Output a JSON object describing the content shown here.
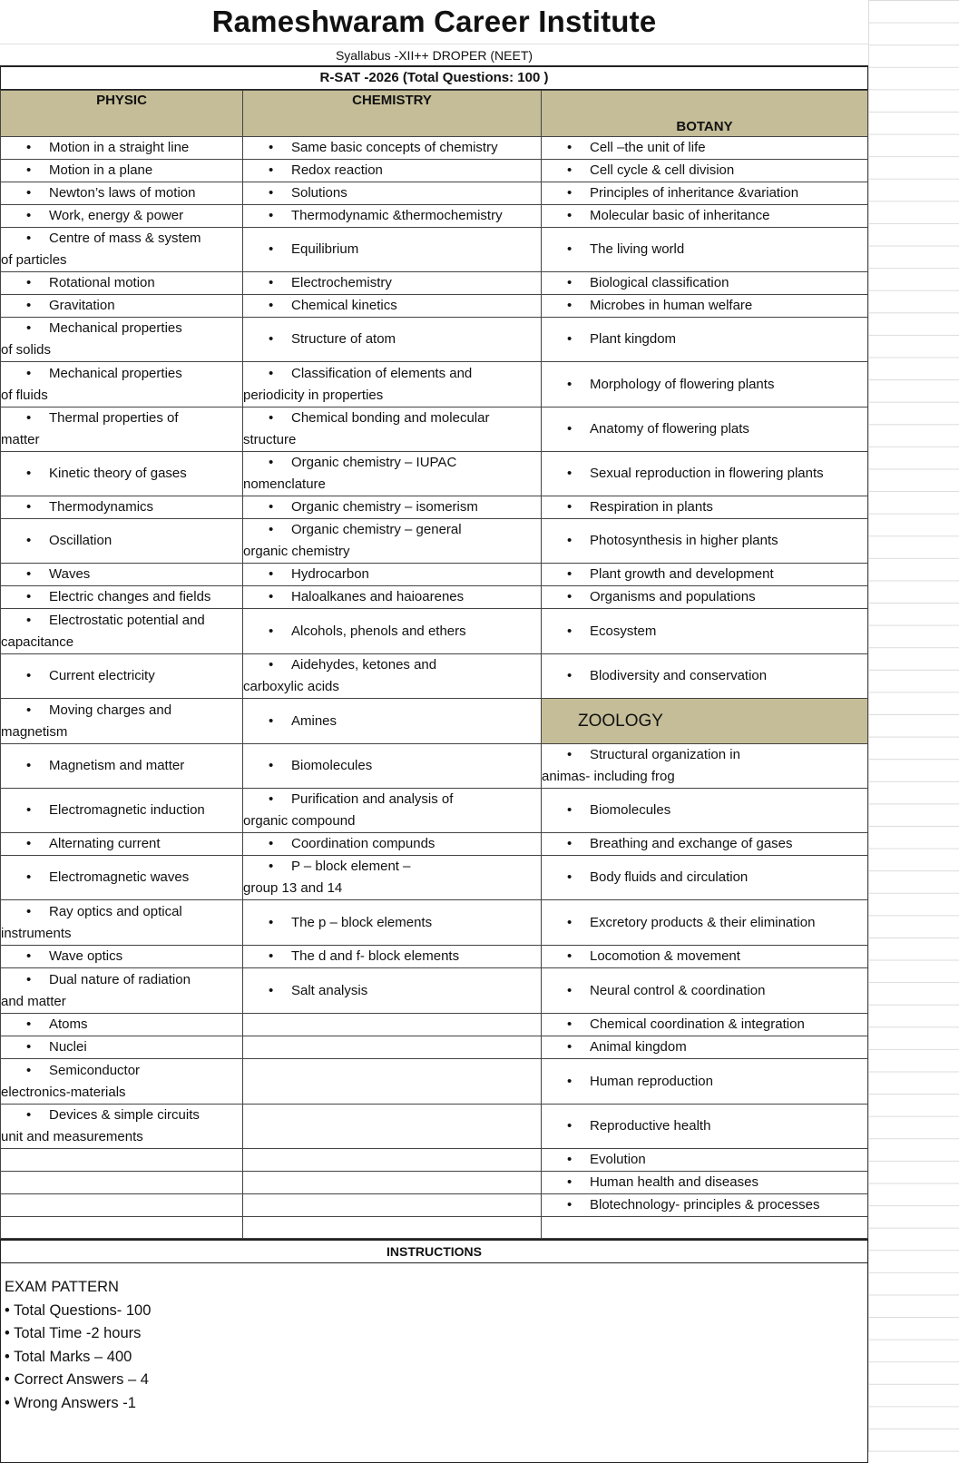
{
  "title": "Rameshwaram Career Institute",
  "subtitle": "Syallabus -XII++ DROPER    (NEET)",
  "exam_title": "R-SAT -2026  (Total Questions: 100 )",
  "headers": {
    "physics": "PHYSIC",
    "chemistry": "CHEMISTRY",
    "botany": "BOTANY",
    "zoology": "ZOOLOGY"
  },
  "rows": [
    [
      "Motion in a straight line",
      "Same basic concepts of chemistry",
      "Cell –the unit of life"
    ],
    [
      "Motion in a plane",
      "Redox reaction",
      "Cell cycle & cell division"
    ],
    [
      "Newton’s laws of motion",
      "Solutions",
      "Principles of inheritance &variation"
    ],
    [
      "Work, energy & power",
      "Thermodynamic &thermochemistry",
      "Molecular basic of inheritance"
    ],
    [
      "Centre of mass & system\n of particles",
      "Equilibrium",
      "The living world"
    ],
    [
      "Rotational motion",
      "Electrochemistry",
      "Biological classification"
    ],
    [
      "Gravitation",
      "Chemical kinetics",
      "Microbes in human welfare"
    ],
    [
      "Mechanical properties\nof solids",
      "Structure of atom",
      "Plant kingdom"
    ],
    [
      "Mechanical properties\nof fluids",
      "Classification of elements and\nperiodicity in properties",
      "Morphology of flowering plants"
    ],
    [
      "Thermal properties of\nmatter",
      "Chemical bonding and molecular\n structure",
      "Anatomy of flowering plats"
    ],
    [
      "Kinetic theory of gases",
      "Organic chemistry – IUPAC\nnomenclature",
      "Sexual reproduction in flowering plants"
    ],
    [
      "Thermodynamics",
      "Organic chemistry – isomerism",
      "Respiration in plants"
    ],
    [
      "Oscillation",
      "Organic chemistry – general\n organic chemistry",
      "Photosynthesis in higher plants"
    ],
    [
      "Waves",
      "Hydrocarbon",
      "Plant growth and development"
    ],
    [
      "Electric changes and fields",
      "Haloalkanes and haioarenes",
      "Organisms and populations"
    ],
    [
      "Electrostatic potential and\n capacitance",
      "Alcohols, phenols and ethers",
      "Ecosystem"
    ],
    [
      "Current electricity",
      "Aidehydes, ketones and\ncarboxylic acids",
      "Blodiversity and conservation"
    ],
    [
      "Moving charges and\n magnetism",
      "Amines",
      "@ZOOLOGY"
    ],
    [
      "Magnetism and matter",
      "Biomolecules",
      "Structural organization in\nanimas- including frog"
    ],
    [
      "Electromagnetic induction",
      "Purification and analysis of\norganic compound",
      "Biomolecules"
    ],
    [
      "Alternating current",
      "Coordination compunds",
      "Breathing and exchange of gases"
    ],
    [
      "Electromagnetic waves",
      "P – block element –\n group 13 and 14",
      "Body fluids and circulation"
    ],
    [
      "Ray optics and optical\ninstruments",
      "The p – block elements",
      "Excretory products & their elimination"
    ],
    [
      "Wave optics",
      "The d and f- block elements",
      "Locomotion & movement"
    ],
    [
      "Dual nature of radiation\n and matter",
      "Salt analysis",
      "Neural control & coordination"
    ],
    [
      "Atoms",
      "",
      "Chemical coordination & integration"
    ],
    [
      "Nuclei",
      "",
      "Animal kingdom"
    ],
    [
      "Semiconductor\n electronics-materials",
      "",
      "Human reproduction"
    ],
    [
      "Devices & simple circuits\nunit and measurements",
      "",
      "Reproductive health"
    ],
    [
      "",
      "",
      "Evolution"
    ],
    [
      "",
      "",
      "Human health and diseases"
    ],
    [
      "",
      "",
      "Blotechnology- principles & processes"
    ],
    [
      "",
      "",
      ""
    ]
  ],
  "instructions": {
    "heading": "INSTRUCTIONS",
    "section": "EXAM PATTERN",
    "items": [
      "Total Questions- 100",
      "Total Time -2 hours",
      "Total Marks – 400",
      "Correct Answers – 4",
      "Wrong Answers -1"
    ]
  }
}
